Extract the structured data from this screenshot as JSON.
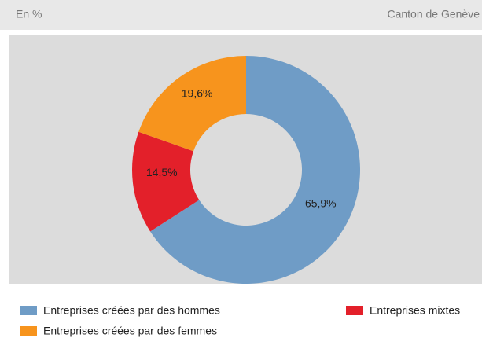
{
  "header": {
    "left": "En %",
    "right": "Canton de Genève"
  },
  "chart_data": {
    "type": "donut",
    "categories": [
      "Entreprises créées par des hommes",
      "Entreprises mixtes",
      "Entreprises créées par des femmes"
    ],
    "values": [
      65.9,
      14.5,
      19.6
    ],
    "value_labels": [
      "65,9%",
      "14,5%",
      "19,6%"
    ],
    "colors": [
      "#6f9cc6",
      "#e3202a",
      "#f7941d"
    ],
    "legend": "bottom"
  }
}
